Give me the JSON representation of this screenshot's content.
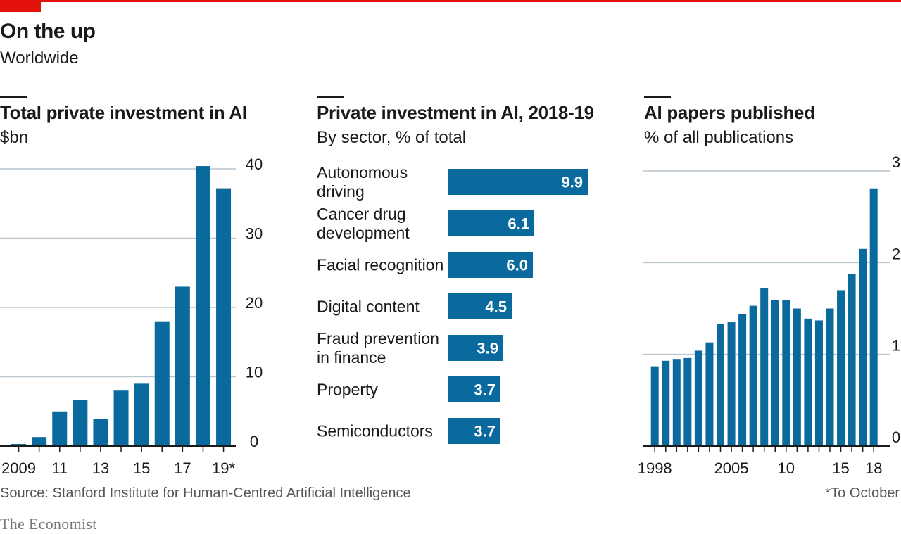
{
  "header": {
    "title": "On the up",
    "subtitle": "Worldwide"
  },
  "colors": {
    "accent_red": "#e3120b",
    "bar_blue": "#0a6a9e",
    "grid": "#b9c6cd"
  },
  "chart_data": [
    {
      "type": "bar",
      "title": "Total private investment in AI",
      "ylabel": "$bn",
      "ylim": [
        0,
        40
      ],
      "yticks": [
        "0",
        "10",
        "20",
        "30",
        "40"
      ],
      "xtick_labels": [
        "2009",
        "11",
        "13",
        "15",
        "17",
        "19*"
      ],
      "categories": [
        "2009",
        "2010",
        "2011",
        "2012",
        "2013",
        "2014",
        "2015",
        "2016",
        "2017",
        "2018",
        "2019*"
      ],
      "values": [
        0.3,
        1.3,
        5.0,
        6.7,
        3.9,
        8.0,
        9.0,
        18.0,
        23.0,
        40.4,
        37.2
      ]
    },
    {
      "type": "bar",
      "orientation": "horizontal",
      "title": "Private investment in AI, 2018-19",
      "ylabel": "By sector, % of total",
      "categories": [
        [
          "Autonomous",
          "driving"
        ],
        [
          "Cancer drug",
          "development"
        ],
        [
          "Facial recognition"
        ],
        [
          "Digital content"
        ],
        [
          "Fraud prevention",
          "in finance"
        ],
        [
          "Property"
        ],
        [
          "Semiconductors"
        ]
      ],
      "values": [
        9.9,
        6.1,
        6.0,
        4.5,
        3.9,
        3.7,
        3.7
      ],
      "value_labels": [
        "9.9",
        "6.1",
        "6.0",
        "4.5",
        "3.9",
        "3.7",
        "3.7"
      ]
    },
    {
      "type": "bar",
      "title": "AI papers published",
      "ylabel": "% of all publications",
      "ylim": [
        0,
        3
      ],
      "yticks": [
        "0",
        "1",
        "2",
        "3"
      ],
      "xtick_labels": [
        "1998",
        "2005",
        "10",
        "15",
        "18"
      ],
      "categories": [
        "1998",
        "1999",
        "2000",
        "2001",
        "2002",
        "2003",
        "2004",
        "2005",
        "2006",
        "2007",
        "2008",
        "2009",
        "2010",
        "2011",
        "2012",
        "2013",
        "2014",
        "2015",
        "2016",
        "2017",
        "2018"
      ],
      "values": [
        0.87,
        0.93,
        0.95,
        0.96,
        1.04,
        1.13,
        1.33,
        1.35,
        1.44,
        1.53,
        1.72,
        1.59,
        1.59,
        1.5,
        1.39,
        1.37,
        1.5,
        1.7,
        1.88,
        2.15,
        2.81
      ]
    }
  ],
  "footer": {
    "source": "Source: Stanford Institute for Human-Centred Artificial Intelligence",
    "footnote": "*To October",
    "brand": "The Economist"
  }
}
